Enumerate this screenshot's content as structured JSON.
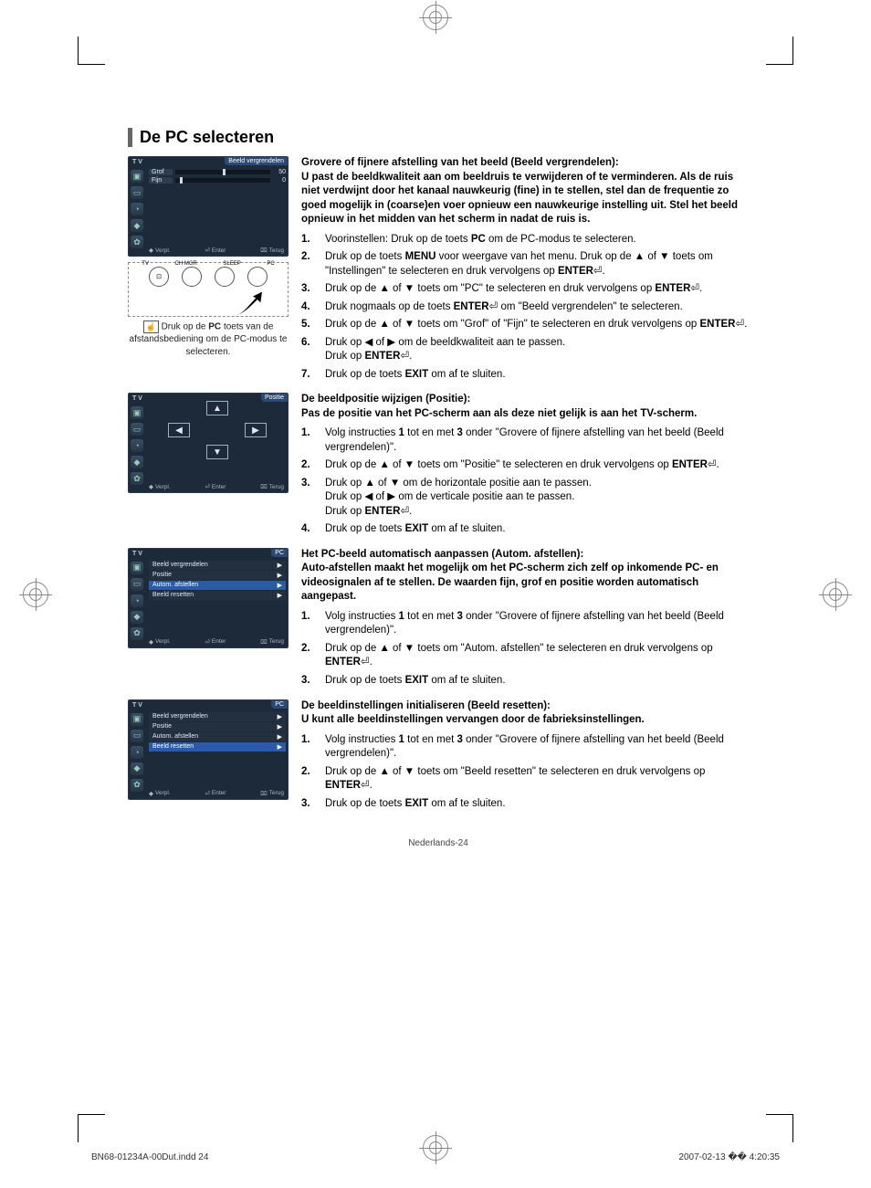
{
  "page": {
    "heading": "De PC selecteren",
    "footer": "Nederlands-24",
    "print_file": "BN68-01234A-00Dut.indd   24",
    "print_date": "2007-02-13   �� 4:20:35"
  },
  "remote": {
    "labels": [
      "TV",
      "CH MGR",
      "SLEEP",
      "PC"
    ],
    "caption_pre": "Druk op de ",
    "caption_key": "PC",
    "caption_post": " toets van de afstandsbediening om de PC-modus te selecteren."
  },
  "osd": {
    "tv": "T V",
    "nav1": "Verpl.",
    "nav2": "Enter",
    "nav3": "Terug",
    "s1_title": "Beeld vergrendelen",
    "s1_rows": [
      {
        "label": "Grof",
        "value": "50",
        "pos": 50
      },
      {
        "label": "Fijn",
        "value": "0",
        "pos": 5
      }
    ],
    "s2_title": "Positie",
    "s3_title": "PC",
    "s3_items": [
      "Beeld vergrendelen",
      "Positie",
      "Autom. afstellen",
      "Beeld resetten"
    ],
    "s3_highlight": 2,
    "s4_title": "PC",
    "s4_items": [
      "Beeld vergrendelen",
      "Positie",
      "Autom. afstellen",
      "Beeld resetten"
    ],
    "s4_highlight": 3
  },
  "sectionA": {
    "intro": "Grovere of fijnere afstelling van het beeld (Beeld vergrendelen):\nU past de beeldkwaliteit aan om beeldruis te verwijderen of te verminderen. Als de ruis niet verdwijnt door het kanaal nauwkeurig (fine) in te stellen, stel dan de frequentie zo goed mogelijk in (coarse)en voer opnieuw een nauwkeurige instelling uit. Stel het beeld opnieuw in het midden van het scherm in nadat de ruis is.",
    "steps": [
      "Voorinstellen: Druk op de toets <b>PC</b> om de PC-modus te selecteren.",
      "Druk op de toets <b>MENU</b> voor weergave van het menu. Druk op de ▲ of ▼ toets om \"Instellingen\" te selecteren en druk vervolgens op <b>ENTER</b>⏎.",
      "Druk op de ▲ of ▼ toets om \"PC\" te selecteren en druk vervolgens op <b>ENTER</b>⏎.",
      "Druk nogmaals op de toets <b>ENTER</b>⏎ om \"Beeld vergrendelen\" te selecteren.",
      "Druk op de ▲ of ▼ toets om \"Grof\" of \"Fijn\" te selecteren en druk vervolgens op <b>ENTER</b>⏎.",
      "Druk op ◀ of ▶ om de beeldkwaliteit aan te passen.<br>Druk op <b>ENTER</b>⏎.",
      "Druk op de toets <b>EXIT</b> om af te sluiten."
    ]
  },
  "sectionB": {
    "intro": "De beeldpositie wijzigen (Positie):\nPas de positie van het PC-scherm aan als deze niet gelijk is aan het TV-scherm.",
    "steps": [
      "Volg instructies <b>1</b> tot en met <b>3</b> onder \"Grovere of fijnere afstelling van het beeld (Beeld vergrendelen)\".",
      "Druk op de ▲ of ▼ toets om \"Positie\" te selecteren en druk vervolgens op <b>ENTER</b>⏎.",
      "Druk op ▲ of ▼ om de horizontale positie aan te passen.<br>Druk op ◀ of ▶ om de verticale positie aan te passen.<br>Druk op <b>ENTER</b>⏎.",
      "Druk op de toets <b>EXIT</b> om af te sluiten."
    ]
  },
  "sectionC": {
    "intro": "Het PC-beeld automatisch aanpassen (Autom. afstellen):\nAuto-afstellen maakt het mogelijk om het PC-scherm zich zelf op inkomende PC- en videosignalen af te stellen. De waarden fijn, grof en positie worden automatisch aangepast.",
    "steps": [
      "Volg instructies <b>1</b> tot en met <b>3</b> onder \"Grovere of fijnere afstelling van het beeld (Beeld vergrendelen)\".",
      "Druk op de ▲ of ▼ toets om \"Autom. afstellen\" te selecteren en druk vervolgens op <b>ENTER</b>⏎.",
      "Druk op de toets <b>EXIT</b> om af te sluiten."
    ]
  },
  "sectionD": {
    "intro": "De beeldinstellingen initialiseren (Beeld resetten):\nU kunt alle beeldinstellingen vervangen door de fabrieksinstellingen.",
    "steps": [
      "Volg instructies <b>1</b> tot en met <b>3</b> onder \"Grovere of fijnere afstelling van het beeld (Beeld vergrendelen)\".",
      "Druk op de ▲ of ▼ toets om \"Beeld resetten\" te selecteren en druk vervolgens op <b>ENTER</b>⏎.",
      "Druk op de toets <b>EXIT</b> om af te sluiten."
    ]
  },
  "colors": {
    "osd_bg": "#1c2a3a",
    "osd_title": "#2a4a72",
    "osd_highlight": "#2a5aa8",
    "heading_bar": "#666666"
  }
}
